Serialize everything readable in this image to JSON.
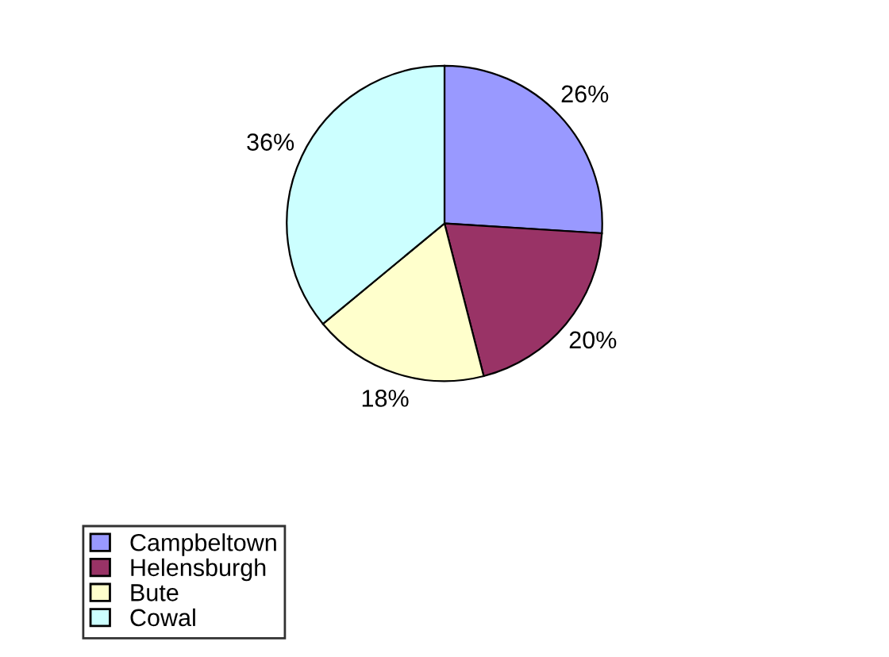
{
  "chart_data": {
    "type": "pie",
    "categories": [
      "Campbeltown",
      "Helensburgh",
      "Bute",
      "Cowal"
    ],
    "values": [
      26,
      20,
      18,
      36
    ],
    "value_labels": [
      "26%",
      "20%",
      "18%",
      "36%"
    ],
    "colors": [
      "#9999ff",
      "#993366",
      "#ffffcc",
      "#ccffff"
    ],
    "legend": "bottom left"
  }
}
